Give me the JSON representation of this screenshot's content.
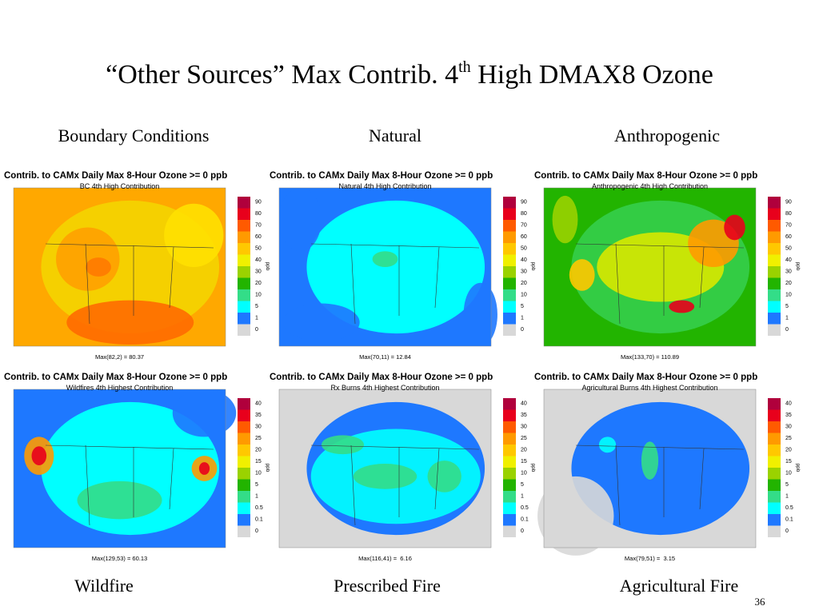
{
  "title": {
    "pre": "“Other Sources” Max Contrib. 4",
    "sup": "th",
    "post": " High DMAX8 Ozone"
  },
  "columns_top": [
    "Boundary Conditions",
    "Natural",
    "Anthropogenic"
  ],
  "columns_bottom": [
    "Wildfire",
    "Prescribed Fire",
    "Agricultural Fire"
  ],
  "panels": [
    {
      "title": "Contrib. to CAMx Daily Max 8-Hour Ozone >= 0 ppb",
      "subtitle": "BC 4th High Contribution",
      "max_label": "Max(82,2) = 80.37",
      "unit": "ppb",
      "colorbar_labels": [
        90,
        80,
        70,
        60,
        50,
        40,
        30,
        20,
        10,
        5,
        1,
        0
      ]
    },
    {
      "title": "Contrib. to CAMx Daily Max 8-Hour Ozone >= 0 ppb",
      "subtitle": "Natural 4th High Contribution",
      "max_label": "Max(70,11) = 12.84",
      "unit": "ppb",
      "colorbar_labels": [
        90,
        80,
        70,
        60,
        50,
        40,
        30,
        20,
        10,
        5,
        1,
        0
      ]
    },
    {
      "title": "Contrib. to CAMx Daily Max 8-Hour Ozone >= 0 ppb",
      "subtitle": "Anthropogenic 4th High Contribution",
      "max_label": "Max(133,70) = 110.89",
      "unit": "ppb",
      "colorbar_labels": [
        90,
        80,
        70,
        60,
        50,
        40,
        30,
        20,
        10,
        5,
        1,
        0
      ]
    },
    {
      "title": "Contrib. to CAMx Daily Max 8-Hour Ozone >= 0 ppb",
      "subtitle": "Wildfires 4th Highest Contribution",
      "max_label": "Max(129,53) = 60.13",
      "unit": "ppb",
      "colorbar_labels": [
        40,
        35,
        30,
        25,
        20,
        15,
        10,
        5,
        1,
        0.5,
        0.1,
        0
      ]
    },
    {
      "title": "Contrib. to CAMx Daily Max 8-Hour Ozone >= 0 ppb",
      "subtitle": "Rx Burns 4th Highest Contribution",
      "max_label": "Max(116,41) =  6.16",
      "unit": "ppb",
      "colorbar_labels": [
        40,
        35,
        30,
        25,
        20,
        15,
        10,
        5,
        1,
        0.5,
        0.1,
        0
      ]
    },
    {
      "title": "Contrib. to CAMx Daily Max 8-Hour Ozone >= 0 ppb",
      "subtitle": "Agricultural Burns 4th Highest Contribution",
      "max_label": "Max(79,51) =  3.15",
      "unit": "ppb",
      "colorbar_labels": [
        40,
        35,
        30,
        25,
        20,
        15,
        10,
        5,
        1,
        0.5,
        0.1,
        0
      ]
    }
  ],
  "page_number": 36
}
